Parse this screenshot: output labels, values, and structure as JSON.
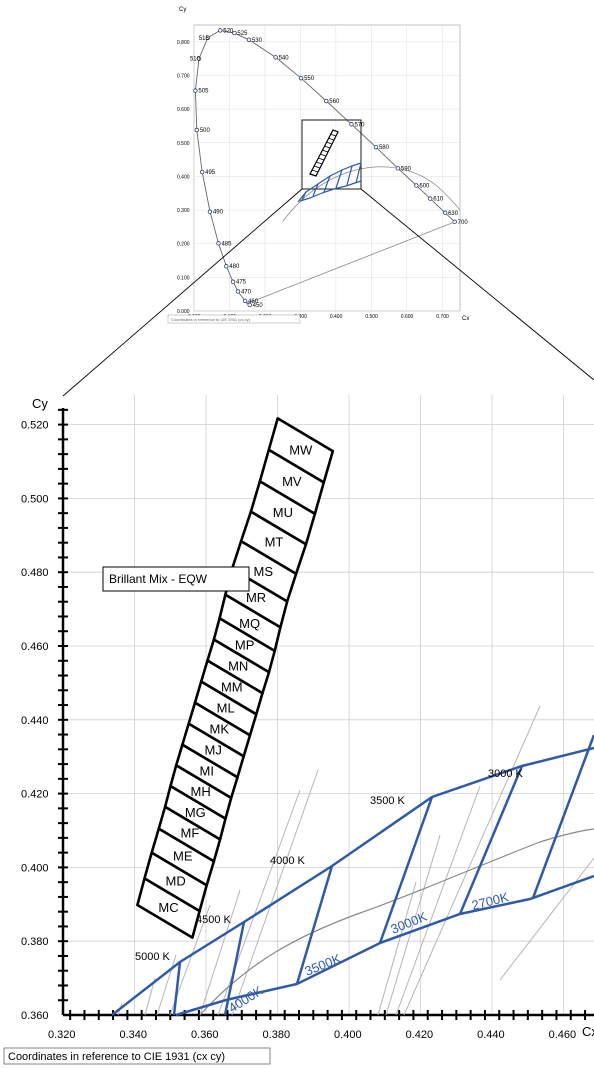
{
  "overview": {
    "x_title": "Cx",
    "y_title": "Cy",
    "note": "Coordinates in reference to CIE 1931 (cx,cy)",
    "x_ticks": [
      "0.000",
      "0.100",
      "0.200",
      "0.300",
      "0.400",
      "0.500",
      "0.600",
      "0.700"
    ],
    "y_ticks": [
      "0.000",
      "0.100",
      "0.200",
      "0.300",
      "0.400",
      "0.500",
      "0.600",
      "0.700",
      "0.800"
    ]
  },
  "detail": {
    "x_title": "Cx",
    "y_title": "Cy",
    "note": "Coordinates in reference to CIE 1931 (cx cy)",
    "legend": "Brillant Mix - EQW",
    "x_ticks": [
      "0.320",
      "0.340",
      "0.360",
      "0.380",
      "0.400",
      "0.420",
      "0.440",
      "0.460"
    ],
    "y_ticks": [
      "0.360",
      "0.380",
      "0.400",
      "0.420",
      "0.440",
      "0.460",
      "0.480",
      "0.500",
      "0.520"
    ]
  },
  "colors": {
    "bins": "#000000",
    "ansi": "#2f5aa8",
    "cct_lines": "#b5b5b5",
    "locus": "#777777",
    "grid": "#cfcfcf"
  },
  "chart_data": [
    {
      "type": "scatter",
      "x_title": "Cx",
      "y_title": "Cy",
      "xlim": [
        0.0,
        0.75
      ],
      "ylim": [
        0.0,
        0.85
      ],
      "spectral_locus": [
        {
          "label": "450",
          "x": 0.157,
          "y": 0.018
        },
        {
          "label": "460",
          "x": 0.144,
          "y": 0.03
        },
        {
          "label": "470",
          "x": 0.124,
          "y": 0.058
        },
        {
          "label": "475",
          "x": 0.11,
          "y": 0.087
        },
        {
          "label": "480",
          "x": 0.091,
          "y": 0.133
        },
        {
          "label": "485",
          "x": 0.069,
          "y": 0.201
        },
        {
          "label": "490",
          "x": 0.045,
          "y": 0.295
        },
        {
          "label": "495",
          "x": 0.023,
          "y": 0.413
        },
        {
          "label": "500",
          "x": 0.008,
          "y": 0.538
        },
        {
          "label": "505",
          "x": 0.004,
          "y": 0.655
        },
        {
          "label": "510",
          "x": 0.014,
          "y": 0.75
        },
        {
          "label": "515",
          "x": 0.039,
          "y": 0.812
        },
        {
          "label": "520",
          "x": 0.074,
          "y": 0.834
        },
        {
          "label": "525",
          "x": 0.114,
          "y": 0.826
        },
        {
          "label": "530",
          "x": 0.155,
          "y": 0.806
        },
        {
          "label": "540",
          "x": 0.23,
          "y": 0.754
        },
        {
          "label": "550",
          "x": 0.302,
          "y": 0.692
        },
        {
          "label": "560",
          "x": 0.373,
          "y": 0.624
        },
        {
          "label": "570",
          "x": 0.444,
          "y": 0.555
        },
        {
          "label": "580",
          "x": 0.513,
          "y": 0.487
        },
        {
          "label": "590",
          "x": 0.575,
          "y": 0.424
        },
        {
          "label": "600",
          "x": 0.627,
          "y": 0.373
        },
        {
          "label": "610",
          "x": 0.666,
          "y": 0.334
        },
        {
          "label": "630",
          "x": 0.708,
          "y": 0.292
        },
        {
          "label": "700",
          "x": 0.735,
          "y": 0.265
        }
      ]
    },
    {
      "type": "scatter",
      "x_title": "Cx",
      "y_title": "Cy",
      "xlim": [
        0.32,
        0.4685
      ],
      "ylim": [
        0.36,
        0.5245
      ],
      "bins": [
        {
          "label": "MC",
          "x": 0.3495,
          "y": 0.389
        },
        {
          "label": "MD",
          "x": 0.3515,
          "y": 0.3962
        },
        {
          "label": "ME",
          "x": 0.3535,
          "y": 0.403
        },
        {
          "label": "MF",
          "x": 0.3555,
          "y": 0.4092
        },
        {
          "label": "MG",
          "x": 0.357,
          "y": 0.4148
        },
        {
          "label": "MH",
          "x": 0.3585,
          "y": 0.4205
        },
        {
          "label": "MI",
          "x": 0.3602,
          "y": 0.426
        },
        {
          "label": "MJ",
          "x": 0.362,
          "y": 0.4317
        },
        {
          "label": "MK",
          "x": 0.3637,
          "y": 0.4374
        },
        {
          "label": "ML",
          "x": 0.3655,
          "y": 0.4431
        },
        {
          "label": "MM",
          "x": 0.3672,
          "y": 0.4488
        },
        {
          "label": "MN",
          "x": 0.369,
          "y": 0.4545
        },
        {
          "label": "MP",
          "x": 0.3708,
          "y": 0.4602
        },
        {
          "label": "MQ",
          "x": 0.3722,
          "y": 0.466
        },
        {
          "label": "MR",
          "x": 0.374,
          "y": 0.473
        },
        {
          "label": "MS",
          "x": 0.376,
          "y": 0.48
        },
        {
          "label": "MT",
          "x": 0.379,
          "y": 0.488
        },
        {
          "label": "MU",
          "x": 0.3815,
          "y": 0.496
        },
        {
          "label": "MV",
          "x": 0.384,
          "y": 0.5045
        },
        {
          "label": "MW",
          "x": 0.3865,
          "y": 0.513
        }
      ],
      "ansi_labels": [
        "2700K",
        "3000K",
        "3500K",
        "4000K"
      ],
      "cct_labels": [
        "3000 K",
        "3500 K",
        "4000 K",
        "4500 K",
        "5000 K"
      ],
      "legend": "Brillant Mix - EQW"
    }
  ]
}
